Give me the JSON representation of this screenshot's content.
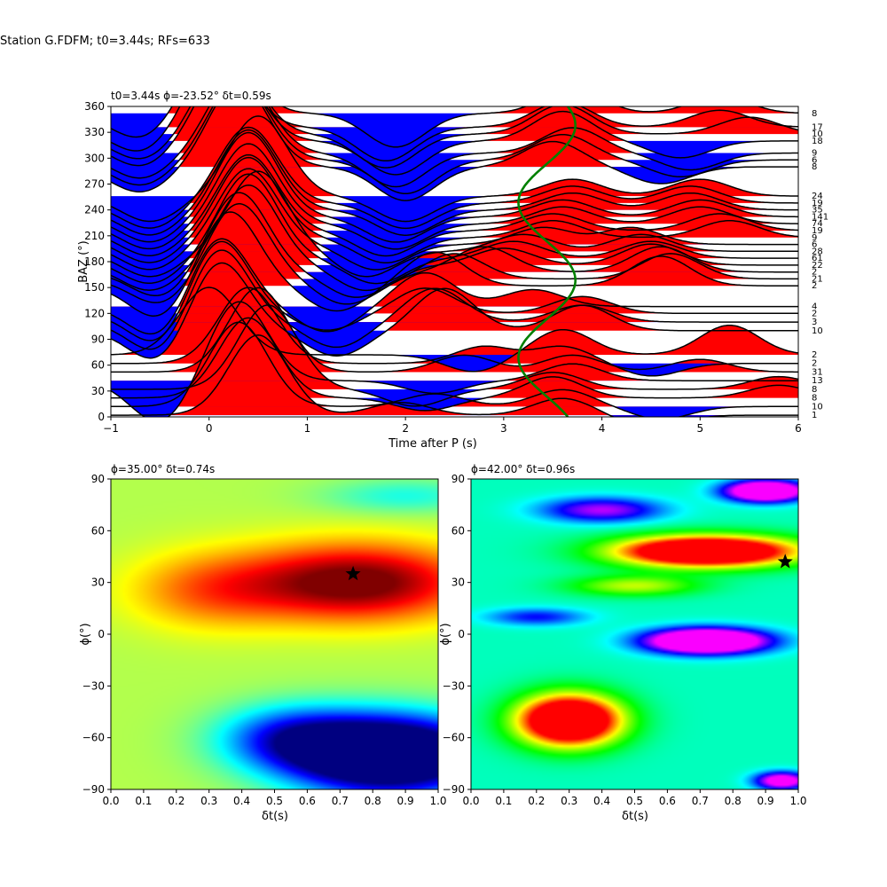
{
  "suptitle": "Station G.FDFM; t0=3.44s; RFs=633",
  "colors": {
    "positive": "#ff0000",
    "negative": "#0000ff",
    "trace": "#000000",
    "model_curve": "#008000",
    "star": "#000000"
  },
  "chart_data": [
    {
      "type": "line",
      "title": "t0=3.44s ϕ=-23.52° δt=0.59s",
      "xlabel": "Time after P (s)",
      "ylabel": "BAZ (°)",
      "xlim": [
        -1,
        6
      ],
      "ylim": [
        0,
        360
      ],
      "xticks": [
        -1,
        0,
        1,
        2,
        3,
        4,
        5,
        6
      ],
      "yticks": [
        0,
        30,
        60,
        90,
        120,
        150,
        180,
        210,
        240,
        270,
        300,
        330,
        360
      ],
      "grid": false,
      "series": [
        {
          "baz": 2,
          "count": "1",
          "peaks": [
            [
              0.5,
              0.95
            ],
            [
              1.95,
              0.15
            ],
            [
              3.6,
              0.2
            ],
            [
              4.5,
              -0.15
            ]
          ]
        },
        {
          "baz": 12,
          "count": "10",
          "peaks": [
            [
              0.3,
              1.0
            ],
            [
              2.3,
              0.15
            ],
            [
              3.6,
              0.2
            ],
            [
              4.6,
              -0.15
            ]
          ]
        },
        {
          "baz": 22,
          "count": "8",
          "peaks": [
            [
              0.4,
              0.95
            ],
            [
              2.2,
              -0.15
            ],
            [
              3.5,
              0.25
            ],
            [
              5.8,
              0.15
            ]
          ]
        },
        {
          "baz": 32,
          "count": "8",
          "peaks": [
            [
              0.6,
              1.0
            ],
            [
              2.1,
              -0.2
            ],
            [
              3.5,
              0.2
            ],
            [
              5.8,
              0.15
            ]
          ]
        },
        {
          "baz": 42,
          "count": "13",
          "peaks": [
            [
              0.3,
              0.95
            ],
            [
              -0.5,
              -0.5
            ],
            [
              2.3,
              -0.15
            ],
            [
              3.7,
              0.2
            ]
          ]
        },
        {
          "baz": 52,
          "count": "31",
          "peaks": [
            [
              0.5,
              1.0
            ],
            [
              2.6,
              0.2
            ],
            [
              3.7,
              0.2
            ],
            [
              5.0,
              0.15
            ]
          ]
        },
        {
          "baz": 62,
          "count": "2",
          "peaks": [
            [
              0.4,
              0.9
            ],
            [
              2.8,
              0.2
            ],
            [
              3.6,
              0.2
            ],
            [
              4.5,
              -0.15
            ]
          ]
        },
        {
          "baz": 72,
          "count": "2",
          "peaks": [
            [
              0.0,
              0.8
            ],
            [
              2.7,
              -0.2
            ],
            [
              3.6,
              0.3
            ],
            [
              5.3,
              0.35
            ]
          ]
        },
        {
          "baz": 100,
          "count": "10",
          "peaks": [
            [
              0.1,
              0.85
            ],
            [
              -0.5,
              -0.4
            ],
            [
              1.3,
              -0.3
            ],
            [
              2.4,
              0.5
            ],
            [
              3.8,
              0.3
            ]
          ]
        },
        {
          "baz": 110,
          "count": "3",
          "peaks": [
            [
              0.1,
              0.9
            ],
            [
              -0.5,
              -0.4
            ],
            [
              1.3,
              -0.3
            ],
            [
              2.3,
              0.4
            ],
            [
              3.8,
              0.2
            ]
          ]
        },
        {
          "baz": 120,
          "count": "2",
          "peaks": [
            [
              0.1,
              0.9
            ],
            [
              -0.5,
              -0.4
            ],
            [
              1.2,
              -0.2
            ],
            [
              2.2,
              0.3
            ],
            [
              3.8,
              0.2
            ]
          ]
        },
        {
          "baz": 128,
          "count": "4",
          "peaks": [
            [
              0.1,
              0.85
            ],
            [
              -0.5,
              -0.4
            ],
            [
              1.2,
              -0.3
            ],
            [
              2.2,
              0.4
            ],
            [
              3.3,
              0.2
            ]
          ]
        },
        {
          "baz": 152,
          "count": "2",
          "peaks": [
            [
              0.2,
              0.9
            ],
            [
              -0.5,
              -0.4
            ],
            [
              1.3,
              -0.3
            ],
            [
              2.3,
              0.4
            ],
            [
              4.6,
              0.35
            ]
          ]
        },
        {
          "baz": 160,
          "count": "21",
          "peaks": [
            [
              0.3,
              0.9
            ],
            [
              -0.5,
              -0.3
            ],
            [
              1.4,
              -0.3
            ],
            [
              2.5,
              0.3
            ],
            [
              4.7,
              0.3
            ]
          ]
        },
        {
          "baz": 168,
          "count": "2",
          "peaks": [
            [
              0.3,
              0.95
            ],
            [
              -0.5,
              -0.3
            ],
            [
              1.5,
              -0.3
            ],
            [
              2.8,
              0.3
            ],
            [
              4.6,
              0.3
            ]
          ]
        },
        {
          "baz": 176,
          "count": "22",
          "peaks": [
            [
              0.4,
              0.95
            ],
            [
              -0.6,
              -0.3
            ],
            [
              1.6,
              -0.3
            ],
            [
              3.0,
              0.2
            ],
            [
              4.5,
              0.25
            ]
          ]
        },
        {
          "baz": 184,
          "count": "61",
          "peaks": [
            [
              0.4,
              1.0
            ],
            [
              -0.6,
              -0.3
            ],
            [
              1.7,
              -0.3
            ],
            [
              3.1,
              0.2
            ],
            [
              4.5,
              0.2
            ]
          ]
        },
        {
          "baz": 192,
          "count": "28",
          "peaks": [
            [
              0.5,
              0.95
            ],
            [
              -0.6,
              -0.3
            ],
            [
              1.6,
              -0.3
            ],
            [
              3.2,
              0.2
            ],
            [
              4.4,
              0.2
            ]
          ]
        },
        {
          "baz": 200,
          "count": "6",
          "peaks": [
            [
              0.4,
              0.9
            ],
            [
              -0.6,
              -0.3
            ],
            [
              1.7,
              -0.3
            ],
            [
              3.4,
              0.2
            ],
            [
              4.3,
              0.2
            ]
          ]
        },
        {
          "baz": 208,
          "count": "9",
          "peaks": [
            [
              0.4,
              0.95
            ],
            [
              -0.6,
              -0.3
            ],
            [
              1.8,
              -0.3
            ],
            [
              3.5,
              0.2
            ],
            [
              5.3,
              0.2
            ]
          ]
        },
        {
          "baz": 216,
          "count": "19",
          "peaks": [
            [
              0.4,
              0.9
            ],
            [
              -0.6,
              -0.3
            ],
            [
              1.8,
              -0.3
            ],
            [
              3.5,
              0.2
            ],
            [
              5.2,
              0.2
            ]
          ]
        },
        {
          "baz": 224,
          "count": "74",
          "peaks": [
            [
              0.4,
              0.95
            ],
            [
              -0.6,
              -0.3
            ],
            [
              1.9,
              -0.3
            ],
            [
              3.6,
              0.2
            ],
            [
              5.0,
              0.2
            ]
          ]
        },
        {
          "baz": 232,
          "count": "141",
          "peaks": [
            [
              0.4,
              1.0
            ],
            [
              -0.6,
              -0.3
            ],
            [
              1.9,
              -0.3
            ],
            [
              3.6,
              0.2
            ],
            [
              5.0,
              0.2
            ]
          ]
        },
        {
          "baz": 240,
          "count": "35",
          "peaks": [
            [
              0.4,
              0.95
            ],
            [
              -0.6,
              -0.3
            ],
            [
              2.0,
              -0.3
            ],
            [
              3.7,
              0.2
            ],
            [
              4.9,
              0.2
            ]
          ]
        },
        {
          "baz": 248,
          "count": "19",
          "peaks": [
            [
              0.4,
              0.9
            ],
            [
              -0.6,
              -0.3
            ],
            [
              2.0,
              -0.3
            ],
            [
              3.7,
              0.2
            ],
            [
              4.9,
              0.2
            ]
          ]
        },
        {
          "baz": 256,
          "count": "24",
          "peaks": [
            [
              0.5,
              0.95
            ],
            [
              -0.6,
              -0.3
            ],
            [
              2.0,
              -0.3
            ],
            [
              3.7,
              0.2
            ],
            [
              5.0,
              0.2
            ]
          ]
        },
        {
          "baz": 290,
          "count": "8",
          "peaks": [
            [
              0.3,
              1.0
            ],
            [
              -0.7,
              -0.3
            ],
            [
              2.0,
              -0.4
            ],
            [
              3.5,
              0.3
            ],
            [
              4.6,
              -0.2
            ]
          ]
        },
        {
          "baz": 298,
          "count": "6",
          "peaks": [
            [
              0.3,
              0.95
            ],
            [
              -0.7,
              -0.3
            ],
            [
              2.0,
              -0.4
            ],
            [
              3.6,
              0.3
            ],
            [
              4.8,
              -0.2
            ]
          ]
        },
        {
          "baz": 306,
          "count": "9",
          "peaks": [
            [
              0.3,
              0.95
            ],
            [
              -0.7,
              -0.3
            ],
            [
              1.9,
              -0.4
            ],
            [
              3.7,
              0.3
            ],
            [
              4.9,
              -0.2
            ]
          ]
        },
        {
          "baz": 320,
          "count": "18",
          "peaks": [
            [
              0.2,
              0.95
            ],
            [
              -0.7,
              -0.3
            ],
            [
              1.9,
              -0.4
            ],
            [
              3.6,
              0.35
            ],
            [
              4.8,
              -0.2
            ]
          ]
        },
        {
          "baz": 328,
          "count": "10",
          "peaks": [
            [
              0.2,
              0.95
            ],
            [
              -0.7,
              -0.3
            ],
            [
              1.8,
              -0.4
            ],
            [
              3.6,
              0.35
            ],
            [
              5.5,
              0.2
            ]
          ]
        },
        {
          "baz": 336,
          "count": "17",
          "peaks": [
            [
              0.1,
              0.9
            ],
            [
              -0.7,
              -0.3
            ],
            [
              1.8,
              -0.4
            ],
            [
              3.6,
              0.3
            ],
            [
              5.2,
              0.2
            ]
          ]
        },
        {
          "baz": 352,
          "count": "8",
          "peaks": [
            [
              0.1,
              0.9
            ],
            [
              -0.7,
              -0.3
            ],
            [
              1.9,
              -0.4
            ],
            [
              3.7,
              0.3
            ],
            [
              5.2,
              0.2
            ]
          ]
        }
      ],
      "model_curve": {
        "t_center": 3.44,
        "amplitude": 0.29,
        "period_deg": 180,
        "phase_deg": 66.5
      }
    },
    {
      "type": "heatmap",
      "title": "ϕ=35.00° δt=0.74s",
      "xlabel": "δt(s)",
      "ylabel": "ϕ(°)",
      "xlim": [
        0.0,
        1.0
      ],
      "ylim": [
        -90,
        90
      ],
      "xticks": [
        0.0,
        0.1,
        0.2,
        0.3,
        0.4,
        0.5,
        0.6,
        0.7,
        0.8,
        0.9,
        1.0
      ],
      "yticks": [
        -90,
        -60,
        -30,
        0,
        30,
        60,
        90
      ],
      "colormap": "jet",
      "best": {
        "dt": 0.74,
        "phi": 35.0
      },
      "features": [
        {
          "dt": 0.75,
          "phi": 30,
          "value": 0.5,
          "sdt": 0.35,
          "sphi": 22
        },
        {
          "dt": 0.3,
          "phi": 25,
          "value": 0.2,
          "sdt": 0.25,
          "sphi": 22
        },
        {
          "dt": 0.85,
          "phi": -70,
          "value": -0.95,
          "sdt": 0.3,
          "sphi": 22
        },
        {
          "dt": 0.55,
          "phi": -60,
          "value": -0.35,
          "sdt": 0.22,
          "sphi": 18
        },
        {
          "dt": 0.9,
          "phi": 80,
          "value": -0.15,
          "sdt": 0.25,
          "sphi": 10
        }
      ]
    },
    {
      "type": "heatmap",
      "title": "ϕ=42.00° δt=0.96s",
      "xlabel": "δt(s)",
      "ylabel": "ϕ(°)",
      "xlim": [
        0.0,
        1.0
      ],
      "ylim": [
        -90,
        90
      ],
      "xticks": [
        0.0,
        0.1,
        0.2,
        0.3,
        0.4,
        0.5,
        0.6,
        0.7,
        0.8,
        0.9,
        1.0
      ],
      "yticks": [
        -90,
        -60,
        -30,
        0,
        30,
        60,
        90
      ],
      "colormap": "hsv",
      "best": {
        "dt": 0.96,
        "phi": 42.0
      },
      "features": [
        {
          "dt": 0.3,
          "phi": -50,
          "value": 0.95,
          "sdt": 0.16,
          "sphi": 15
        },
        {
          "dt": 0.72,
          "phi": 48,
          "value": 0.95,
          "sdt": 0.28,
          "sphi": 9
        },
        {
          "dt": 0.72,
          "phi": -4,
          "value": -0.95,
          "sdt": 0.18,
          "sphi": 7
        },
        {
          "dt": 0.9,
          "phi": 83,
          "value": -0.85,
          "sdt": 0.12,
          "sphi": 6
        },
        {
          "dt": 0.4,
          "phi": 72,
          "value": -0.4,
          "sdt": 0.18,
          "sphi": 7
        },
        {
          "dt": 0.5,
          "phi": 28,
          "value": 0.3,
          "sdt": 0.2,
          "sphi": 6
        },
        {
          "dt": 0.95,
          "phi": -85,
          "value": -0.6,
          "sdt": 0.08,
          "sphi": 5
        },
        {
          "dt": 0.2,
          "phi": 10,
          "value": -0.25,
          "sdt": 0.15,
          "sphi": 5
        }
      ]
    }
  ]
}
